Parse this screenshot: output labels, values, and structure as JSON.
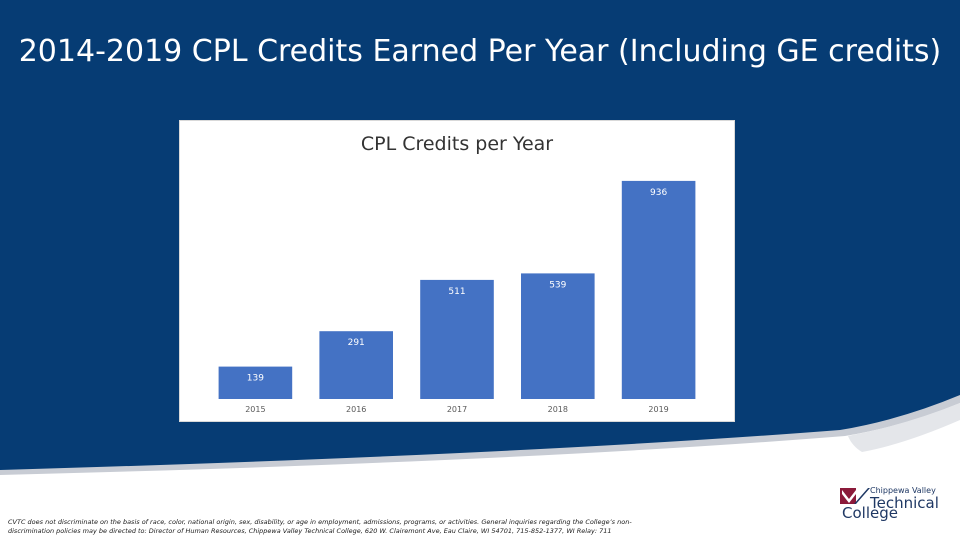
{
  "slide": {
    "title": "2014-2019 CPL Credits Earned Per Year (Including GE credits)",
    "background_color": "#063c74",
    "footer": "CVTC does not discriminate on the basis of race, color, national origin, sex, disability, or age in employment, admissions, programs, or activities. General inquiries regarding the College’s non-discrimination policies may be directed to: Director of Human Resources, Chippewa Valley Technical College, 620 W. Clairemont Ave, Eau Claire, WI 54701, 715-852-1377, WI Relay: 711"
  },
  "logo": {
    "line1": "Chippewa Valley",
    "line2": "Technical",
    "line3": "College",
    "color": "#1f3864",
    "accent_color": "#8b1a3a"
  },
  "chart_data": {
    "type": "bar",
    "title": "CPL Credits per Year",
    "categories": [
      "2015",
      "2016",
      "2017",
      "2018",
      "2019"
    ],
    "series": [
      {
        "values": [
          139,
          291,
          511,
          539,
          936
        ],
        "color": "#4472c4"
      }
    ],
    "data_labels": [
      "139",
      "291",
      "511",
      "539",
      "936"
    ],
    "xlabel": "",
    "ylabel": "",
    "ylim": [
      0,
      1000
    ],
    "grid": false,
    "legend": "none"
  }
}
